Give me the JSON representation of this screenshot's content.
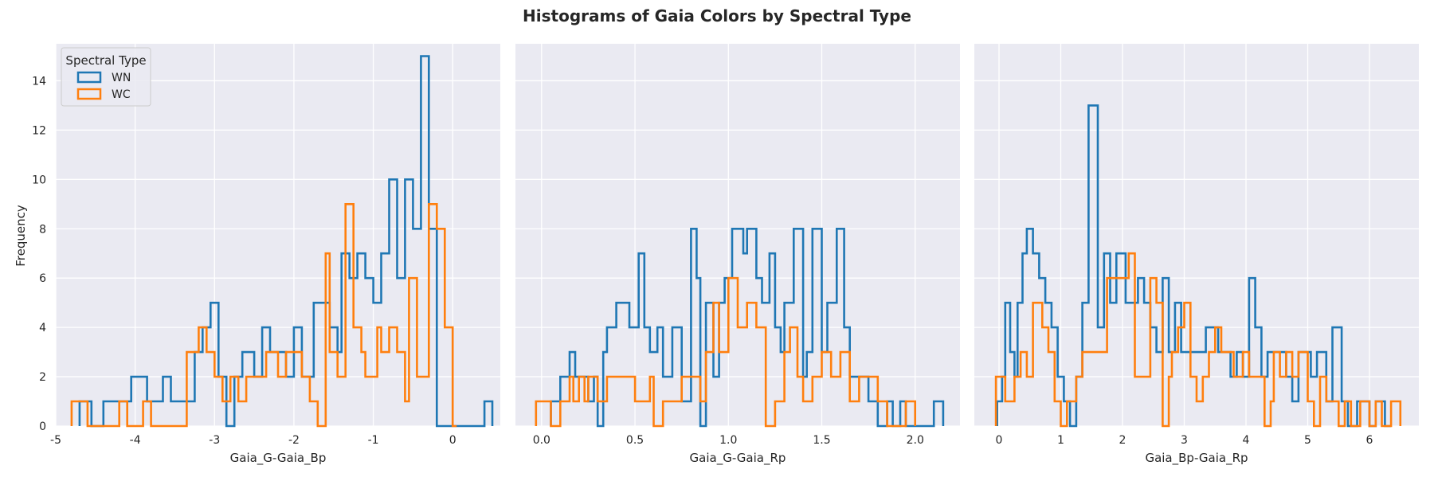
{
  "figure": {
    "title": "Histograms of Gaia Colors by Spectral Type",
    "ylabel": "Frequency"
  },
  "colors": {
    "WN": "#1f77b4",
    "WC": "#ff7f0e",
    "panel_bg": "#eaeaf2",
    "grid": "#ffffff",
    "text": "#262626"
  },
  "legend": {
    "title": "Spectral Type",
    "entries": [
      "WN",
      "WC"
    ],
    "placement": "upper-left of first panel"
  },
  "chart_data": [
    {
      "type": "histogram-step",
      "xlabel": "Gaia_G-Gaia_Bp",
      "xlim": [
        -5,
        0.6
      ],
      "ylim": [
        0,
        15.5
      ],
      "xticks": [
        -5,
        -4,
        -3,
        -2,
        -1,
        0
      ],
      "yticks": [
        0,
        2,
        4,
        6,
        8,
        10,
        12,
        14
      ],
      "series": [
        {
          "name": "WN",
          "edges": [
            -4.7,
            -4.55,
            -4.4,
            -4.25,
            -4.05,
            -3.85,
            -3.65,
            -3.55,
            -3.4,
            -3.25,
            -3.15,
            -3.05,
            -2.95,
            -2.85,
            -2.75,
            -2.65,
            -2.5,
            -2.4,
            -2.3,
            -2.1,
            -2.0,
            -1.9,
            -1.75,
            -1.55,
            -1.45,
            -1.4,
            -1.3,
            -1.2,
            -1.1,
            -1.0,
            -0.9,
            -0.8,
            -0.7,
            -0.6,
            -0.5,
            -0.4,
            -0.3,
            -0.2,
            -0.1,
            -0.05,
            0.05,
            0.1,
            0.4,
            0.5
          ],
          "counts": [
            1,
            0,
            1,
            1,
            2,
            1,
            2,
            1,
            1,
            3,
            4,
            5,
            2,
            0,
            2,
            3,
            2,
            4,
            3,
            2,
            4,
            2,
            5,
            4,
            3,
            7,
            6,
            7,
            6,
            5,
            7,
            10,
            6,
            10,
            8,
            15,
            8,
            0,
            0,
            0,
            0,
            0,
            1
          ]
        },
        {
          "name": "WC",
          "edges": [
            -4.8,
            -4.6,
            -4.2,
            -4.1,
            -3.9,
            -3.8,
            -3.35,
            -3.2,
            -3.1,
            -3.0,
            -2.9,
            -2.8,
            -2.7,
            -2.6,
            -2.45,
            -2.35,
            -2.2,
            -2.1,
            -1.9,
            -1.8,
            -1.7,
            -1.6,
            -1.55,
            -1.45,
            -1.35,
            -1.25,
            -1.15,
            -1.1,
            -0.95,
            -0.9,
            -0.8,
            -0.7,
            -0.6,
            -0.55,
            -0.45,
            -0.3,
            -0.2,
            -0.1,
            0.0,
            0.05
          ],
          "counts": [
            1,
            0,
            1,
            0,
            1,
            0,
            3,
            4,
            3,
            2,
            1,
            2,
            1,
            2,
            2,
            3,
            2,
            3,
            2,
            1,
            0,
            7,
            3,
            2,
            9,
            4,
            3,
            2,
            4,
            3,
            4,
            3,
            1,
            6,
            2,
            9,
            8,
            4,
            0
          ]
        }
      ]
    },
    {
      "type": "histogram-step",
      "xlabel": "Gaia_G-Gaia_Rp",
      "xlim": [
        -0.14,
        2.24
      ],
      "ylim": [
        0,
        15.5
      ],
      "xticks": [
        0.0,
        0.5,
        1.0,
        1.5,
        2.0
      ],
      "series": [
        {
          "name": "WN",
          "edges": [
            0.05,
            0.1,
            0.15,
            0.18,
            0.22,
            0.25,
            0.28,
            0.3,
            0.33,
            0.35,
            0.4,
            0.47,
            0.52,
            0.55,
            0.58,
            0.62,
            0.65,
            0.7,
            0.75,
            0.8,
            0.83,
            0.85,
            0.88,
            0.92,
            0.95,
            0.98,
            1.02,
            1.05,
            1.08,
            1.1,
            1.15,
            1.18,
            1.22,
            1.25,
            1.28,
            1.3,
            1.35,
            1.4,
            1.42,
            1.45,
            1.5,
            1.53,
            1.58,
            1.62,
            1.65,
            1.68,
            1.75,
            1.8,
            1.85,
            1.88,
            1.92,
            1.95,
            2.1,
            2.15
          ],
          "counts": [
            1,
            2,
            3,
            2,
            2,
            1,
            2,
            0,
            3,
            4,
            5,
            4,
            7,
            4,
            3,
            4,
            2,
            4,
            1,
            8,
            6,
            0,
            5,
            2,
            5,
            6,
            8,
            8,
            7,
            8,
            6,
            5,
            7,
            4,
            3,
            5,
            8,
            2,
            3,
            8,
            3,
            5,
            8,
            4,
            2,
            2,
            1,
            0,
            1,
            0,
            1,
            0,
            1
          ]
        },
        {
          "name": "WC",
          "edges": [
            -0.03,
            0.05,
            0.1,
            0.15,
            0.17,
            0.2,
            0.23,
            0.25,
            0.3,
            0.35,
            0.4,
            0.5,
            0.55,
            0.58,
            0.6,
            0.65,
            0.7,
            0.75,
            0.8,
            0.85,
            0.88,
            0.92,
            0.95,
            1.0,
            1.05,
            1.1,
            1.15,
            1.2,
            1.25,
            1.3,
            1.33,
            1.37,
            1.4,
            1.45,
            1.5,
            1.55,
            1.6,
            1.65,
            1.7,
            1.75,
            1.8,
            1.85,
            1.9,
            1.95,
            2.0
          ],
          "counts": [
            1,
            0,
            1,
            2,
            1,
            2,
            1,
            2,
            1,
            2,
            2,
            1,
            1,
            2,
            0,
            1,
            1,
            2,
            2,
            1,
            3,
            5,
            3,
            6,
            4,
            5,
            4,
            0,
            1,
            3,
            4,
            2,
            1,
            2,
            3,
            2,
            3,
            1,
            2,
            2,
            1,
            0,
            0,
            1
          ]
        }
      ]
    },
    {
      "type": "histogram-step",
      "xlabel": "Gaia_Bp-Gaia_Rp",
      "xlim": [
        -0.4,
        6.8
      ],
      "ylim": [
        0,
        15.5
      ],
      "xticks": [
        0,
        1,
        2,
        3,
        4,
        5,
        6
      ],
      "series": [
        {
          "name": "WN",
          "edges": [
            -0.03,
            0.05,
            0.1,
            0.18,
            0.25,
            0.3,
            0.38,
            0.45,
            0.55,
            0.65,
            0.75,
            0.85,
            0.95,
            1.05,
            1.15,
            1.25,
            1.35,
            1.45,
            1.6,
            1.7,
            1.8,
            1.9,
            2.05,
            2.15,
            2.25,
            2.35,
            2.45,
            2.55,
            2.65,
            2.75,
            2.85,
            2.95,
            3.05,
            3.15,
            3.25,
            3.35,
            3.55,
            3.65,
            3.75,
            3.85,
            3.95,
            4.05,
            4.15,
            4.25,
            4.35,
            4.5,
            4.65,
            4.75,
            4.85,
            5.05,
            5.15,
            5.3,
            5.4,
            5.55,
            5.65,
            5.8,
            6.0,
            6.1,
            6.25,
            6.35
          ],
          "counts": [
            1,
            2,
            5,
            3,
            2,
            5,
            7,
            8,
            7,
            6,
            5,
            4,
            2,
            1,
            0,
            2,
            5,
            13,
            4,
            7,
            5,
            7,
            5,
            5,
            6,
            5,
            4,
            3,
            6,
            3,
            5,
            3,
            3,
            3,
            3,
            4,
            3,
            3,
            2,
            3,
            2,
            6,
            4,
            2,
            3,
            3,
            2,
            1,
            3,
            2,
            3,
            1,
            4,
            1,
            0,
            1,
            0,
            1,
            0
          ]
        },
        {
          "name": "WC",
          "edges": [
            -0.05,
            0.1,
            0.25,
            0.35,
            0.45,
            0.55,
            0.7,
            0.8,
            0.9,
            1.0,
            1.1,
            1.25,
            1.35,
            1.6,
            1.75,
            2.1,
            2.2,
            2.35,
            2.45,
            2.55,
            2.65,
            2.75,
            2.8,
            2.9,
            3.0,
            3.1,
            3.2,
            3.3,
            3.4,
            3.5,
            3.6,
            3.8,
            3.95,
            4.05,
            4.15,
            4.3,
            4.4,
            4.45,
            4.55,
            4.65,
            4.75,
            4.85,
            5.0,
            5.1,
            5.2,
            5.3,
            5.5,
            5.6,
            5.7,
            5.85,
            6.0,
            6.1,
            6.2,
            6.35,
            6.5
          ],
          "counts": [
            2,
            1,
            2,
            3,
            2,
            5,
            4,
            3,
            1,
            0,
            1,
            2,
            3,
            3,
            6,
            7,
            2,
            2,
            6,
            5,
            0,
            2,
            3,
            4,
            5,
            2,
            1,
            2,
            3,
            4,
            3,
            2,
            3,
            2,
            2,
            0,
            1,
            3,
            2,
            3,
            2,
            3,
            1,
            0,
            2,
            1,
            0,
            1,
            0,
            1,
            0,
            1,
            0,
            1
          ]
        }
      ]
    }
  ]
}
